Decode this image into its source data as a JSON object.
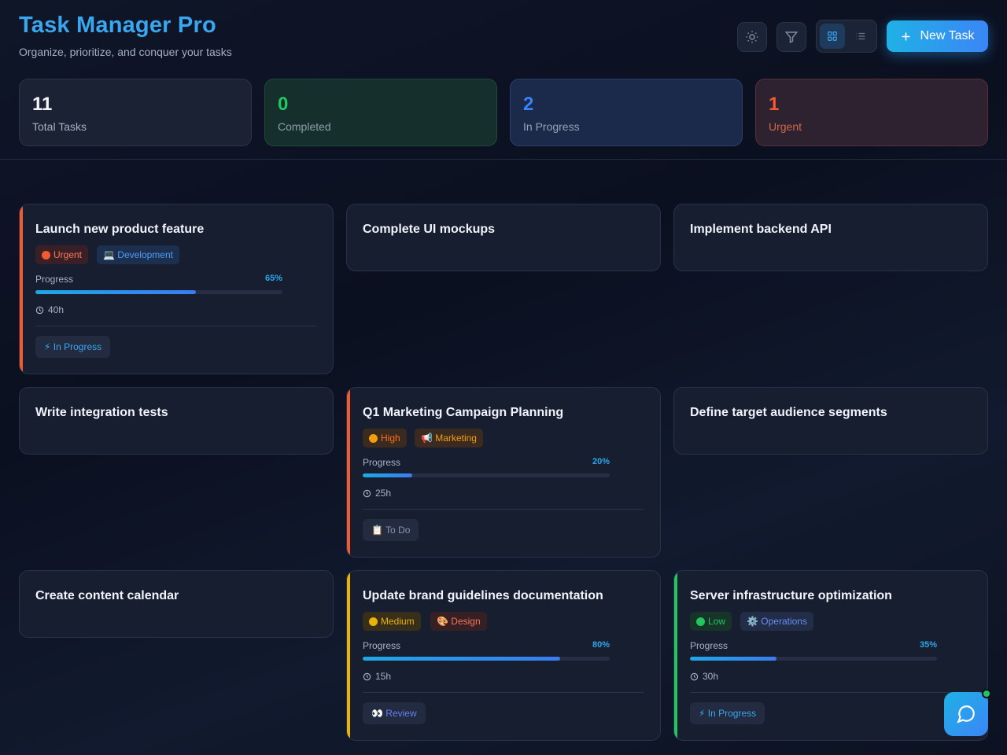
{
  "header": {
    "title": "Task Manager Pro",
    "subtitle": "Organize, prioritize, and conquer your tasks",
    "theme_icon": "sun-icon",
    "filter_icon": "filter-icon",
    "view_grid_icon": "grid-icon",
    "view_list_icon": "list-icon",
    "active_view": "grid",
    "new_task_label": "New Task"
  },
  "stats": [
    {
      "value": "11",
      "label": "Total Tasks",
      "color": "#f2f5fb"
    },
    {
      "value": "0",
      "label": "Completed",
      "color": "#22c55e"
    },
    {
      "value": "2",
      "label": "In Progress",
      "color": "#3b82f6"
    },
    {
      "value": "1",
      "label": "Urgent",
      "color": "#f25a32"
    }
  ],
  "tasks": [
    {
      "title": "Launch new product feature",
      "priority": "Urgent",
      "category": "💻 Development",
      "progress_label": "Progress",
      "progress": 65,
      "progress_text": "65%",
      "hours": "40h",
      "status": "⚡ In Progress"
    },
    {
      "title": "Complete UI mockups"
    },
    {
      "title": "Implement backend API"
    },
    {
      "title": "Write integration tests"
    },
    {
      "title": "Q1 Marketing Campaign Planning",
      "priority": "High",
      "category": "📢 Marketing",
      "progress_label": "Progress",
      "progress": 20,
      "progress_text": "20%",
      "hours": "25h",
      "status": "📋 To Do"
    },
    {
      "title": "Define target audience segments"
    },
    {
      "title": "Create content calendar"
    },
    {
      "title": "Update brand guidelines documentation",
      "priority": "Medium",
      "category": "🎨 Design",
      "progress_label": "Progress",
      "progress": 80,
      "progress_text": "80%",
      "hours": "15h",
      "status": "👀 Review"
    },
    {
      "title": "Server infrastructure optimization",
      "priority": "Low",
      "category": "⚙️ Operations",
      "progress_label": "Progress",
      "progress": 35,
      "progress_text": "35%",
      "hours": "30h",
      "status": "⚡ In Progress"
    }
  ],
  "colors": {
    "urgent": "#f25a32",
    "high": "#f97316",
    "medium": "#eab308",
    "low": "#22c55e",
    "accent": "#3aa6f0"
  },
  "chat_icon": "chat-bubble-icon"
}
